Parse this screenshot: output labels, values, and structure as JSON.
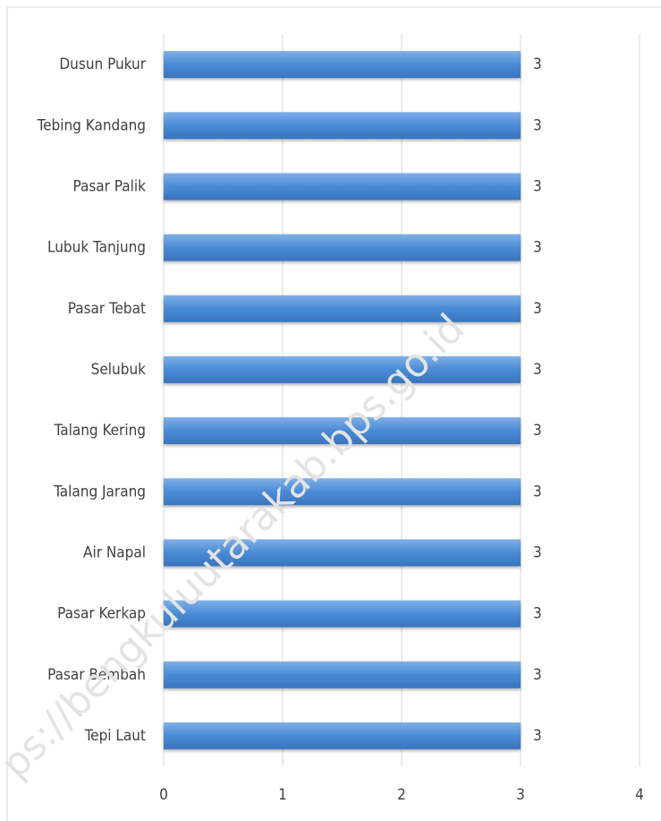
{
  "chart_data": {
    "type": "bar",
    "orientation": "horizontal",
    "categories": [
      "Dusun Pukur",
      "Tebing Kandang",
      "Pasar Palik",
      "Lubuk Tanjung",
      "Pasar Tebat",
      "Selubuk",
      "Talang Kering",
      "Talang Jarang",
      "Air Napal",
      "Pasar Kerkap",
      "Pasar Bembah",
      "Tepi Laut"
    ],
    "values": [
      3,
      3,
      3,
      3,
      3,
      3,
      3,
      3,
      3,
      3,
      3,
      3
    ],
    "color": "#4a8bd6",
    "xlim": [
      0,
      4
    ],
    "xticks": [
      0,
      1,
      2,
      3,
      4
    ],
    "grid": true,
    "watermark": "ps://bengkuluutarakab.bps.go.id"
  }
}
